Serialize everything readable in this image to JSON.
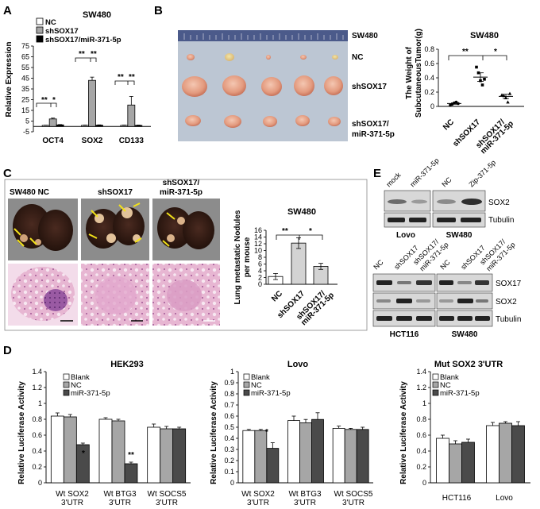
{
  "panels": {
    "A": {
      "letter": "A",
      "title": "SW480",
      "legend": [
        "NC",
        "shSOX17",
        "shSOX17/miR-371-5p"
      ],
      "ylabel": "Relative Expression",
      "sig": [
        "**",
        "*",
        "**",
        "**",
        "**",
        "**"
      ]
    },
    "B": {
      "letter": "B",
      "photo_rows": [
        "SW480",
        "NC",
        "shSOX17",
        "shSOX17/",
        "miR-371-5p"
      ],
      "title": "SW480",
      "ylabel_1": "The Weight of",
      "ylabel_2": "SubcutaneousTumor(g)",
      "xlabels": [
        "NC",
        "shSOX17",
        "shSOX17/",
        "miR-371-5p"
      ],
      "sig": [
        "**",
        "*"
      ]
    },
    "C": {
      "letter": "C",
      "photo_labels": [
        "SW480  NC",
        "shSOX17",
        "shSOX17/",
        "miR-371-5p"
      ],
      "title": "SW480",
      "ylabel_1": "Lung metastatic Nodules",
      "ylabel_2": "per mouse",
      "xlabels": [
        "NC",
        "shSOX17",
        "shSOX17/",
        "miR-371-5p"
      ],
      "sig": [
        "**",
        "*"
      ]
    },
    "E": {
      "letter": "E",
      "top_lanes": [
        "mock",
        "miR-371-5p",
        "NC",
        "Zip-371-5p"
      ],
      "top_rows": [
        "SOX2",
        "Tubulin"
      ],
      "top_cells": [
        "Lovo",
        "SW480"
      ],
      "bottom_lanes": [
        "NC",
        "shSOX17",
        "shSOX17/",
        "miR-371-5p",
        "NC",
        "shSOX17",
        "shSOX17/",
        "miR-371-5p"
      ],
      "bottom_rows": [
        "SOX17",
        "SOX2",
        "Tubulin"
      ],
      "bottom_cells": [
        "HCT116",
        "SW480"
      ]
    },
    "D": {
      "letter": "D",
      "ylabel": "Relative Luciferase Activity",
      "legend": [
        "Blank",
        "NC",
        "miR-371-5p"
      ],
      "titles": [
        "HEK293",
        "Lovo",
        "Mut SOX2 3'UTR"
      ],
      "d1_x": [
        "Wt SOX2",
        "3'UTR",
        "Wt BTG3",
        "3'UTR",
        "Wt SOCS5",
        "3'UTR"
      ],
      "d1_sig": [
        "*",
        "**"
      ],
      "d2_x": [
        "Wt SOX2",
        "3'UTR",
        "Wt BTG3",
        "3'UTR",
        "Wt SOCS5",
        "3'UTR"
      ],
      "d2_sig": [
        "*"
      ],
      "d3_x": [
        "HCT116",
        "Lovo"
      ]
    }
  },
  "chart_data": [
    {
      "type": "bar",
      "title": "SW480",
      "ylabel": "Relative Expression",
      "categories": [
        "OCT4",
        "SOX2",
        "CD133"
      ],
      "series": [
        {
          "name": "NC",
          "values": [
            1,
            1,
            1
          ],
          "errors": [
            0.2,
            0.3,
            0.3
          ]
        },
        {
          "name": "shSOX17",
          "values": [
            7,
            43,
            20
          ],
          "errors": [
            0.8,
            3,
            8
          ]
        },
        {
          "name": "shSOX17/miR-371-5p",
          "values": [
            1.5,
            1.2,
            1
          ],
          "errors": [
            0.3,
            0.3,
            0.3
          ]
        }
      ],
      "yticks": [
        -5,
        5,
        15,
        25,
        35,
        45,
        55,
        65,
        75
      ],
      "ylim": [
        -5,
        75
      ]
    },
    {
      "type": "scatter",
      "title": "SW480",
      "ylabel": "The Weight of SubcutaneousTumor(g)",
      "categories": [
        "NC",
        "shSOX17",
        "shSOX17/miR-371-5p"
      ],
      "points": [
        [
          0.02,
          0.03,
          0.05,
          0.06,
          0.04
        ],
        [
          0.55,
          0.47,
          0.36,
          0.3,
          0.38
        ],
        [
          0.16,
          0.15,
          0.12,
          0.06,
          0.18
        ]
      ],
      "means": [
        0.04,
        0.41,
        0.14
      ],
      "sem": [
        0.01,
        0.06,
        0.03
      ],
      "yticks": [
        0,
        0.2,
        0.4,
        0.6,
        0.8
      ],
      "ylim": [
        0,
        0.8
      ]
    },
    {
      "type": "bar",
      "title": "SW480",
      "ylabel": "Lung metastatic Nodules per mouse",
      "categories": [
        "NC",
        "shSOX17",
        "shSOX17/miR-371-5p"
      ],
      "values": [
        2.3,
        12.2,
        5.3
      ],
      "errors": [
        0.9,
        1.6,
        0.9
      ],
      "yticks": [
        0,
        2,
        4,
        6,
        8,
        10,
        12,
        14,
        16
      ],
      "ylim": [
        0,
        16
      ]
    },
    {
      "type": "bar",
      "title": "HEK293",
      "ylabel": "Relative Luciferase Activity",
      "categories": [
        "Wt SOX2 3'UTR",
        "Wt BTG3 3'UTR",
        "Wt SOCS5 3'UTR"
      ],
      "series": [
        {
          "name": "Blank",
          "values": [
            0.84,
            0.8,
            0.7
          ],
          "errors": [
            0.04,
            0.02,
            0.04
          ]
        },
        {
          "name": "NC",
          "values": [
            0.83,
            0.78,
            0.68
          ],
          "errors": [
            0.03,
            0.02,
            0.03
          ]
        },
        {
          "name": "miR-371-5p",
          "values": [
            0.48,
            0.24,
            0.68
          ],
          "errors": [
            0.02,
            0.02,
            0.02
          ]
        }
      ],
      "yticks": [
        0,
        0.2,
        0.4,
        0.6,
        0.8,
        1,
        1.2,
        1.4
      ],
      "ylim": [
        0,
        1.4
      ]
    },
    {
      "type": "bar",
      "title": "Lovo",
      "ylabel": "Relative Luciferase Activity",
      "categories": [
        "Wt SOX2 3'UTR",
        "Wt BTG3 3'UTR",
        "Wt SOCS5 3'UTR"
      ],
      "series": [
        {
          "name": "Blank",
          "values": [
            0.47,
            0.56,
            0.49
          ],
          "errors": [
            0.01,
            0.04,
            0.02
          ]
        },
        {
          "name": "NC",
          "values": [
            0.47,
            0.54,
            0.48
          ],
          "errors": [
            0.01,
            0.03,
            0.01
          ]
        },
        {
          "name": "miR-371-5p",
          "values": [
            0.31,
            0.57,
            0.48
          ],
          "errors": [
            0.05,
            0.06,
            0.02
          ]
        }
      ],
      "yticks": [
        0,
        0.1,
        0.2,
        0.3,
        0.4,
        0.5,
        0.6,
        0.7,
        0.8,
        0.9,
        1
      ],
      "ylim": [
        0,
        1
      ]
    },
    {
      "type": "bar",
      "title": "Mut SOX2 3'UTR",
      "ylabel": "Relative Luciferase Activity",
      "categories": [
        "HCT116",
        "Lovo"
      ],
      "series": [
        {
          "name": "Blank",
          "values": [
            0.56,
            0.72
          ],
          "errors": [
            0.04,
            0.04
          ]
        },
        {
          "name": "NC",
          "values": [
            0.49,
            0.75
          ],
          "errors": [
            0.04,
            0.02
          ]
        },
        {
          "name": "miR-371-5p",
          "values": [
            0.51,
            0.72
          ],
          "errors": [
            0.04,
            0.05
          ]
        }
      ],
      "yticks": [
        0,
        0.2,
        0.4,
        0.6,
        0.8,
        1,
        1.2,
        1.4
      ],
      "ylim": [
        0,
        1.4
      ]
    }
  ],
  "colors": {
    "white": "#ffffff",
    "grey": "#a6a6a6",
    "dark": "#4a4a4a",
    "black": "#000000",
    "photo_bg": "#8c8c8c",
    "western_bg": "#d8d8d8"
  }
}
